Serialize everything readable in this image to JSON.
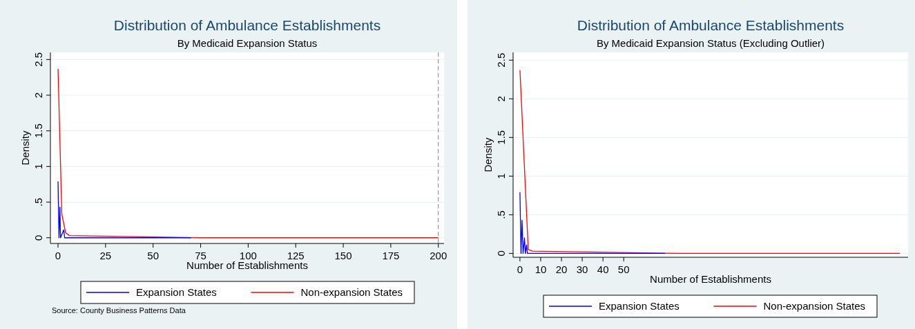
{
  "chart_data": [
    {
      "type": "line",
      "title": "Distribution of Ambulance Establishments",
      "subtitle": "By Medicaid Expansion Status",
      "xlabel": "Number of Establishments",
      "ylabel": "Density",
      "xlim": [
        -4,
        203
      ],
      "xticks": [
        0,
        25,
        50,
        75,
        100,
        125,
        150,
        175,
        200
      ],
      "ylim": [
        -0.08,
        2.6
      ],
      "yticks": [
        0,
        {
          "value": 0.5,
          "label": ".5"
        },
        1,
        {
          "value": 1.5,
          "label": "1.5"
        },
        2,
        {
          "value": 2.5,
          "label": "2.5"
        }
      ],
      "grid": "y",
      "legend": "bottom",
      "ref_lines": [
        {
          "axis": "x",
          "value": 200,
          "color": "#808080",
          "line_style": "dashed"
        }
      ],
      "annotations": [
        "Source: County Business Patterns Data"
      ],
      "series": [
        {
          "name": "Expansion States",
          "color": "#0000ff",
          "x": [
            0,
            0.5,
            1,
            1.3,
            3,
            3.5,
            70
          ],
          "values": [
            0.79,
            0,
            0.43,
            0,
            0.11,
            0,
            0
          ]
        },
        {
          "name": "Non-expansion States",
          "color": "#ff0000",
          "x": [
            0,
            2,
            4,
            6,
            75,
            200
          ],
          "values": [
            2.37,
            0.33,
            0.07,
            0.03,
            0,
            0
          ]
        }
      ]
    },
    {
      "type": "line",
      "title": "Distribution of Ambulance Establishments",
      "subtitle": "By Medicaid Expansion Status (Excluding Outlier)",
      "xlabel": "Number of Establishments",
      "ylabel": "Density",
      "xlim": [
        -3.3,
        187
      ],
      "xticks": [
        0,
        10,
        20,
        30,
        40,
        50
      ],
      "ylim": [
        -0.05,
        2.6
      ],
      "yticks": [
        0,
        {
          "value": 0.5,
          "label": ".5"
        },
        1,
        {
          "value": 1.5,
          "label": "1.5"
        },
        2,
        {
          "value": 2.5,
          "label": "2.5"
        }
      ],
      "grid": "y",
      "legend": "bottom",
      "series": [
        {
          "name": "Expansion States",
          "color": "#0000ff",
          "x": [
            0,
            0.5,
            1,
            1.5,
            2.2,
            2.6,
            3.2,
            3.6,
            70
          ],
          "values": [
            0.79,
            0,
            0.43,
            0,
            0.2,
            0,
            0.11,
            0,
            0
          ]
        },
        {
          "name": "Non-expansion States",
          "color": "#ff0000",
          "x": [
            0,
            4,
            6,
            75,
            183
          ],
          "values": [
            2.37,
            0.05,
            0.03,
            0,
            0
          ]
        }
      ]
    }
  ]
}
